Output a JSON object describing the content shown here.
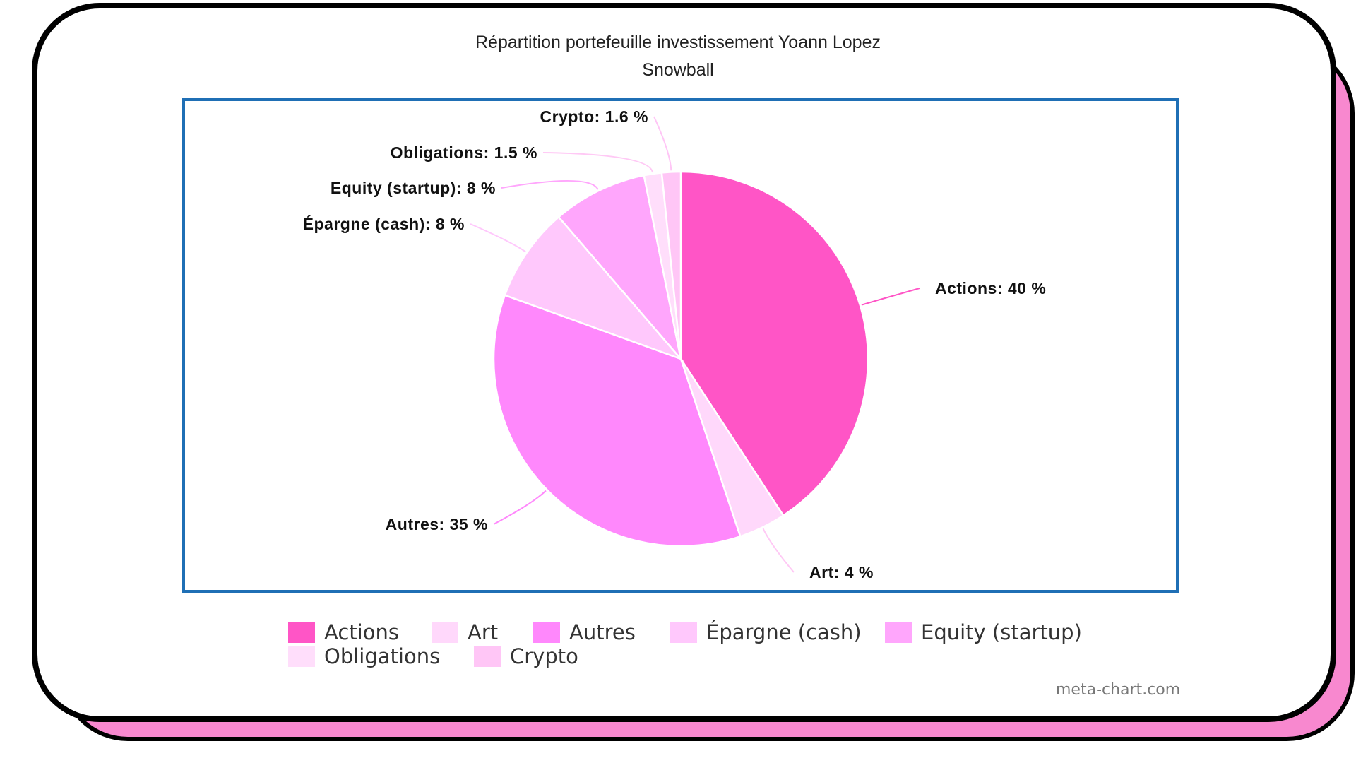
{
  "chart_data": {
    "type": "pie",
    "title": "Répartition portefeuille investissement Yoann Lopez",
    "subtitle": "Snowball",
    "unit": "%",
    "slices": [
      {
        "name": "Actions",
        "value": 40,
        "label": "Actions: 40 %",
        "color": "#ff55c6"
      },
      {
        "name": "Art",
        "value": 4,
        "label": "Art: 4 %",
        "color": "#ffd8fb"
      },
      {
        "name": "Autres",
        "value": 35,
        "label": "Autres: 35 %",
        "color": "#ff88fc"
      },
      {
        "name": "Épargne (cash)",
        "value": 8,
        "label": "Épargne (cash): 8 %",
        "color": "#ffc8fc"
      },
      {
        "name": "Equity (startup)",
        "value": 8,
        "label": "Equity (startup): 8 %",
        "color": "#ffa6fc"
      },
      {
        "name": "Obligations",
        "value": 1.5,
        "label": "Obligations: 1.5 %",
        "color": "#ffdefb"
      },
      {
        "name": "Crypto",
        "value": 1.6,
        "label": "Crypto: 1.6 %",
        "color": "#ffc6f6"
      }
    ],
    "legend_position": "bottom"
  },
  "credit": "meta-chart.com"
}
